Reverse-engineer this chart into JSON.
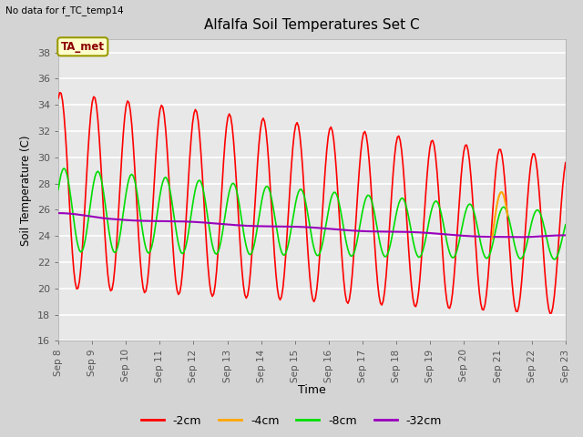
{
  "title": "Alfalfa Soil Temperatures Set C",
  "xlabel": "Time",
  "ylabel": "Soil Temperature (C)",
  "ylim": [
    16,
    39
  ],
  "xlim": [
    0,
    15
  ],
  "fig_bg_color": "#d4d4d4",
  "plot_bg_color": "#e8e8e8",
  "no_data_text": "No data for f_TC_temp14",
  "ta_met_label": "TA_met",
  "xtick_labels": [
    "Sep 8",
    "Sep 9",
    "Sep 10",
    "Sep 11",
    "Sep 12",
    "Sep 13",
    "Sep 14",
    "Sep 15",
    "Sep 16",
    "Sep 17",
    "Sep 18",
    "Sep 19",
    "Sep 20",
    "Sep 21",
    "Sep 22",
    "Sep 23"
  ],
  "series_2cm_color": "#ff0000",
  "series_4cm_color": "#ffa500",
  "series_8cm_color": "#00dd00",
  "series_32cm_color": "#9900bb",
  "legend_labels": [
    "-2cm",
    "-4cm",
    "-8cm",
    "-32cm"
  ],
  "legend_colors": [
    "#ff0000",
    "#ffa500",
    "#00dd00",
    "#9900bb"
  ]
}
